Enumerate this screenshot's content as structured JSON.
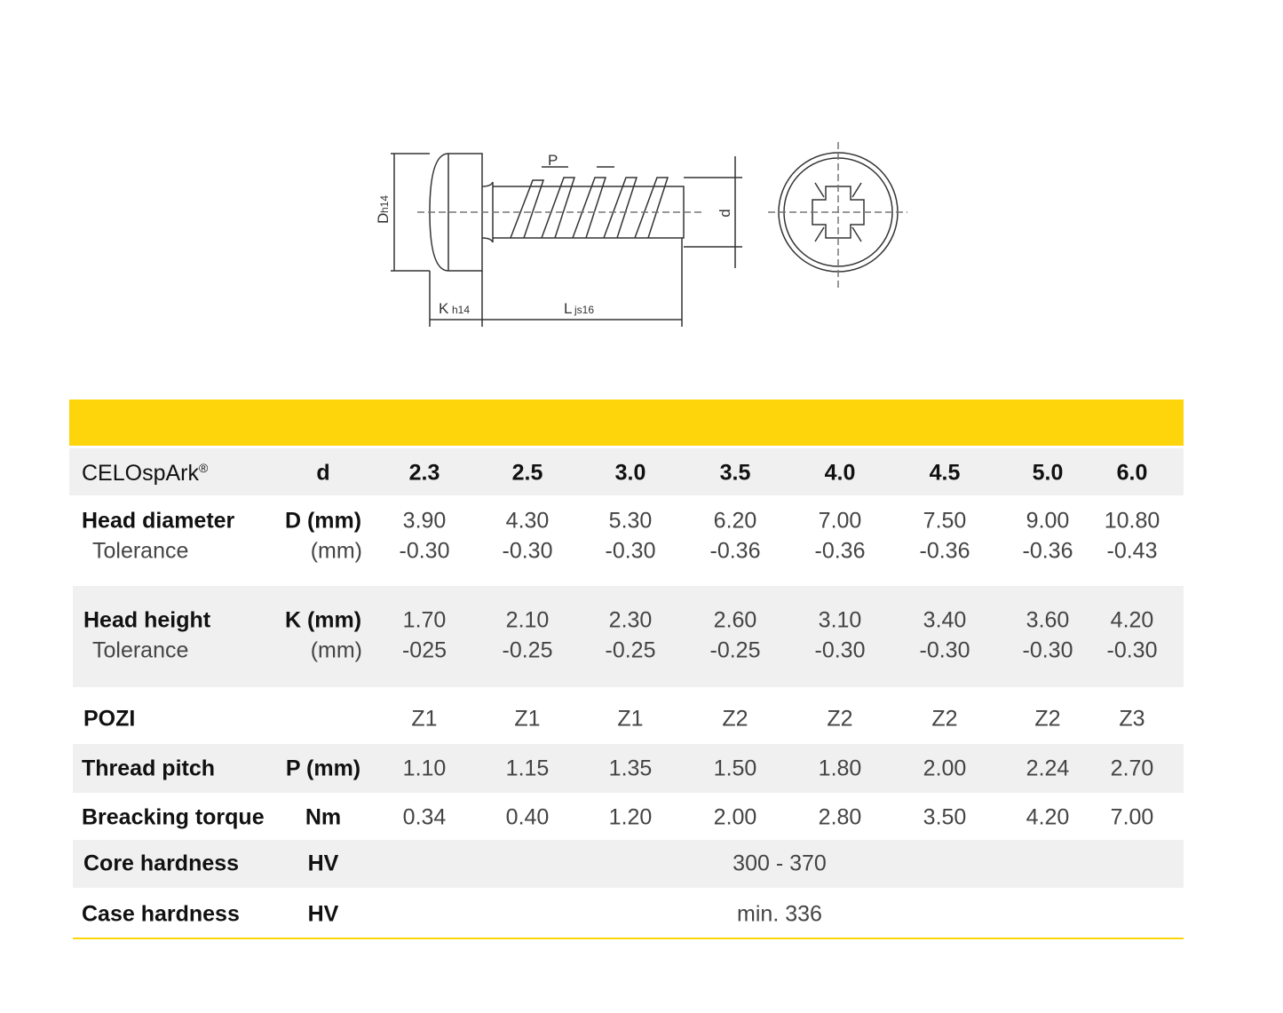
{
  "drawing": {
    "pitch": "P",
    "d": "d",
    "D": "D",
    "D_sub": "h14",
    "K": "K",
    "K_sub": "h14",
    "L": "L",
    "L_sub": "js16"
  },
  "table": {
    "header": {
      "brand": "CELOspArk",
      "reg": "®",
      "unit": "d",
      "values": [
        "2.3",
        "2.5",
        "3.0",
        "3.5",
        "4.0",
        "4.5",
        "5.0",
        "6.0"
      ]
    },
    "rows": [
      {
        "label": "Head diameter",
        "unit": "D (mm)",
        "values": [
          "3.90",
          "4.30",
          "5.30",
          "6.20",
          "7.00",
          "7.50",
          "9.00",
          "10.80"
        ],
        "sub_label": "Tolerance",
        "sub_unit": "(mm)",
        "sub_values": [
          "-0.30",
          "-0.30",
          "-0.30",
          "-0.36",
          "-0.36",
          "-0.36",
          "-0.36",
          "-0.43"
        ]
      },
      {
        "label": "Head height",
        "unit": "K (mm)",
        "values": [
          "1.70",
          "2.10",
          "2.30",
          "2.60",
          "3.10",
          "3.40",
          "3.60",
          "4.20"
        ],
        "sub_label": "Tolerance",
        "sub_unit": "(mm)",
        "sub_values": [
          "-025",
          "-0.25",
          "-0.25",
          "-0.25",
          "-0.30",
          "-0.30",
          "-0.30",
          "-0.30"
        ]
      },
      {
        "label": "POZI",
        "values": [
          "Z1",
          "Z1",
          "Z1",
          "Z2",
          "Z2",
          "Z2",
          "Z2",
          "Z3"
        ]
      },
      {
        "label": "Thread pitch",
        "unit": "P (mm)",
        "values": [
          "1.10",
          "1.15",
          "1.35",
          "1.50",
          "1.80",
          "2.00",
          "2.24",
          "2.70"
        ]
      },
      {
        "label": "Breacking torque",
        "unit": "Nm",
        "values": [
          "0.34",
          "0.40",
          "1.20",
          "2.00",
          "2.80",
          "3.50",
          "4.20",
          "7.00"
        ]
      },
      {
        "label": "Core hardness",
        "unit": "HV",
        "span": "300 - 370"
      },
      {
        "label": "Case hardness",
        "unit": "HV",
        "span": "min. 336"
      }
    ]
  }
}
